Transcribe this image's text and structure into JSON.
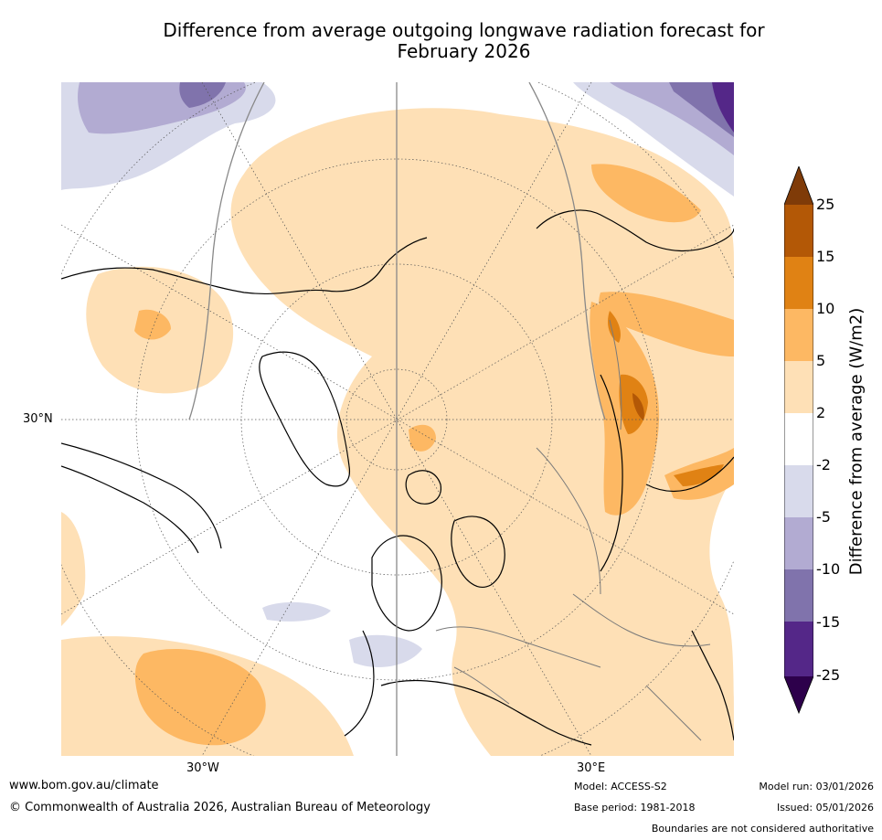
{
  "title": {
    "line1": "Difference from average outgoing longwave radiation forecast for",
    "line2": "February 2026"
  },
  "map": {
    "projection": "north-polar-stereographic",
    "lon_labels": [
      "30°W",
      "30°E"
    ],
    "lat_labels": [
      "30°N"
    ]
  },
  "colorbar": {
    "title": "Difference from average (W/m2)",
    "ticks": [
      "25",
      "15",
      "10",
      "5",
      "2",
      "-2",
      "-5",
      "-10",
      "-15",
      "-25"
    ],
    "bins": [
      {
        "range": "> 25",
        "color": "#7f3b08"
      },
      {
        "range": "15 to 25",
        "color": "#b35806"
      },
      {
        "range": "10 to 15",
        "color": "#e08214"
      },
      {
        "range": "5 to 10",
        "color": "#fdb863"
      },
      {
        "range": "2 to 5",
        "color": "#fee0b6"
      },
      {
        "range": "-2 to 2",
        "color": "#ffffff"
      },
      {
        "range": "-5 to -2",
        "color": "#d8daeb"
      },
      {
        "range": "-10 to -5",
        "color": "#b2abd2"
      },
      {
        "range": "-15 to -10",
        "color": "#8073ac"
      },
      {
        "range": "-25 to -15",
        "color": "#542788"
      },
      {
        "range": "< -25",
        "color": "#2d004b"
      }
    ]
  },
  "footer": {
    "website": "www.bom.gov.au/climate",
    "copyright": "© Commonwealth of Australia 2026, Australian Bureau of Meteorology",
    "model": "Model: ACCESS-S2",
    "base_period": "Base period: 1981-2018",
    "model_run": "Model run: 03/01/2026",
    "issued": "Issued: 05/01/2026",
    "boundaries": "Boundaries are not considered authoritative"
  }
}
